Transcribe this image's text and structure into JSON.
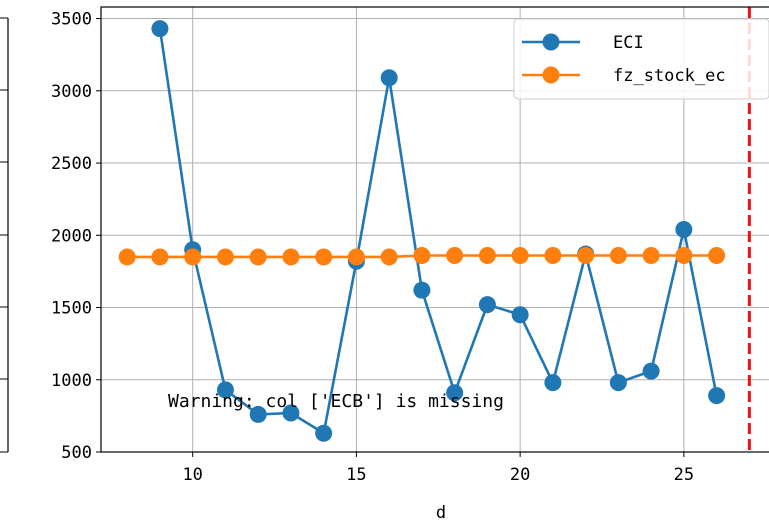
{
  "chart_data": {
    "type": "line",
    "xlabel": "d",
    "ylabel": "",
    "xlim": [
      7.2,
      27.6
    ],
    "ylim": [
      500,
      3580
    ],
    "xticks": [
      10,
      15,
      20,
      25
    ],
    "yticks": [
      500,
      1000,
      1500,
      2000,
      2500,
      3000,
      3500
    ],
    "grid": true,
    "legend_position": "top-right",
    "vline": {
      "x": 27,
      "color": "#ee1111",
      "style": "dashed"
    },
    "annotation": "Warning: col ['ECB'] is missing",
    "series": [
      {
        "name": "ECI",
        "color": "#1f77b4",
        "x": [
          9,
          10,
          11,
          12,
          13,
          14,
          15,
          16,
          17,
          18,
          19,
          20,
          21,
          22,
          23,
          24,
          25,
          26
        ],
        "y": [
          3430,
          1900,
          930,
          760,
          770,
          630,
          1820,
          3090,
          1620,
          910,
          1520,
          1450,
          980,
          1870,
          980,
          1060,
          2040,
          890
        ]
      },
      {
        "name": "fz_stock_ec",
        "color": "#ff7f0e",
        "x": [
          8,
          9,
          10,
          11,
          12,
          13,
          14,
          15,
          16,
          17,
          18,
          19,
          20,
          21,
          22,
          23,
          24,
          25,
          26
        ],
        "y": [
          1850,
          1850,
          1850,
          1850,
          1850,
          1850,
          1850,
          1850,
          1850,
          1860,
          1860,
          1860,
          1860,
          1860,
          1860,
          1860,
          1860,
          1860,
          1860
        ]
      }
    ]
  }
}
